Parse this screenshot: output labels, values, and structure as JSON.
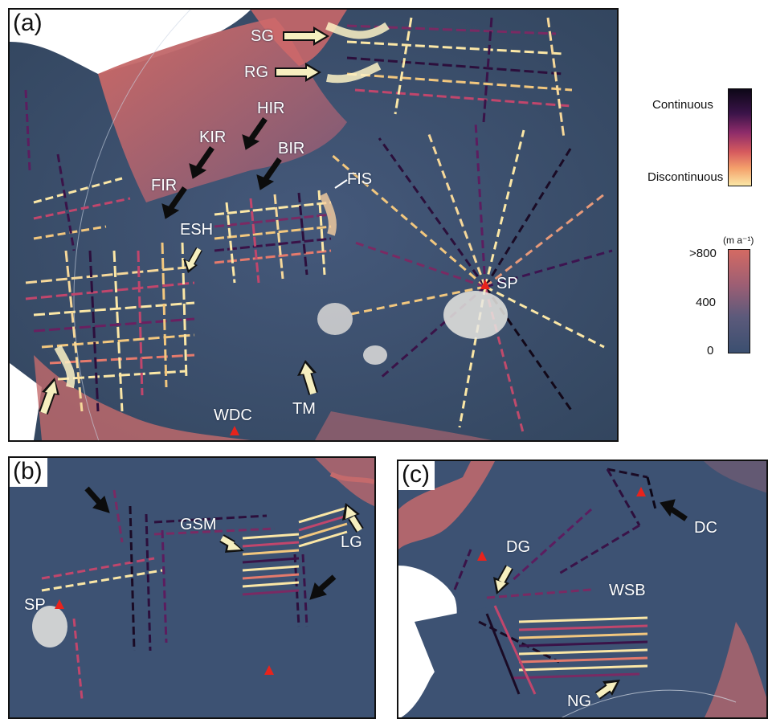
{
  "panels": {
    "a": {
      "letter": "(a)",
      "labels": {
        "sg": "SG",
        "rg": "RG",
        "hir": "HIR",
        "kir": "KIR",
        "bir": "BIR",
        "fir": "FIR",
        "fis": "FIS",
        "esh": "ESH",
        "sp": "SP",
        "tm": "TM",
        "wdc": "WDC"
      }
    },
    "b": {
      "letter": "(b)",
      "labels": {
        "gsm": "GSM",
        "lg": "LG",
        "sp": "SP"
      }
    },
    "c": {
      "letter": "(c)",
      "labels": {
        "dg": "DG",
        "wsb": "WSB",
        "dc": "DC",
        "ng": "NG"
      }
    }
  },
  "legend": {
    "continuity": {
      "top_label": "Continuous",
      "bottom_label": "Discontinuous"
    },
    "speed": {
      "unit": "(m a⁻¹)",
      "max_label": ">800",
      "mid_label": "400",
      "min_label": "0"
    }
  },
  "colors": {
    "bed": "#3b4f70",
    "fast_ice": "#d46a63",
    "continuous": "#0d0717",
    "discontinuous": "#fbe7a6",
    "arrow_light": "#f6efbf",
    "arrow_dark": "#0c0c0c",
    "station_marker": "#e8231c"
  }
}
